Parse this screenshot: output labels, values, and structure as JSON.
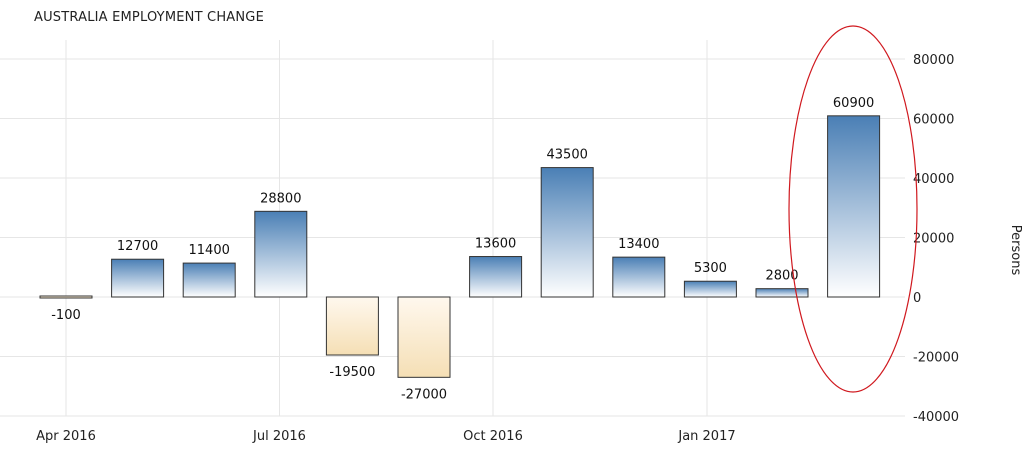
{
  "chart_data": {
    "type": "bar",
    "title": "AUSTRALIA EMPLOYMENT CHANGE",
    "ylabel": "Persons",
    "ylim": [
      -40000,
      80000
    ],
    "yticks": [
      80000,
      60000,
      40000,
      20000,
      0,
      -20000,
      -40000
    ],
    "xtick_labels": [
      "Apr 2016",
      "Jul 2016",
      "Oct 2016",
      "Jan 2017"
    ],
    "grid": true,
    "values": [
      -100,
      12700,
      11400,
      28800,
      -19500,
      -27000,
      13600,
      43500,
      13400,
      5300,
      2800,
      60900
    ],
    "data_labels": [
      "-100",
      "12700",
      "11400",
      "28800",
      "-19500",
      "-27000",
      "13600",
      "43500",
      "13400",
      "5300",
      "2800",
      "60900"
    ],
    "colors": {
      "positive_top": "#4a7fb5",
      "positive_bottom": "#ffffff",
      "negative_top": "#fff8ee",
      "negative_bottom": "#f5dfb5",
      "annotation_ellipse": "#d0191f",
      "grid": "#e6e6e6"
    },
    "annotation": "ellipse around latest bar"
  }
}
